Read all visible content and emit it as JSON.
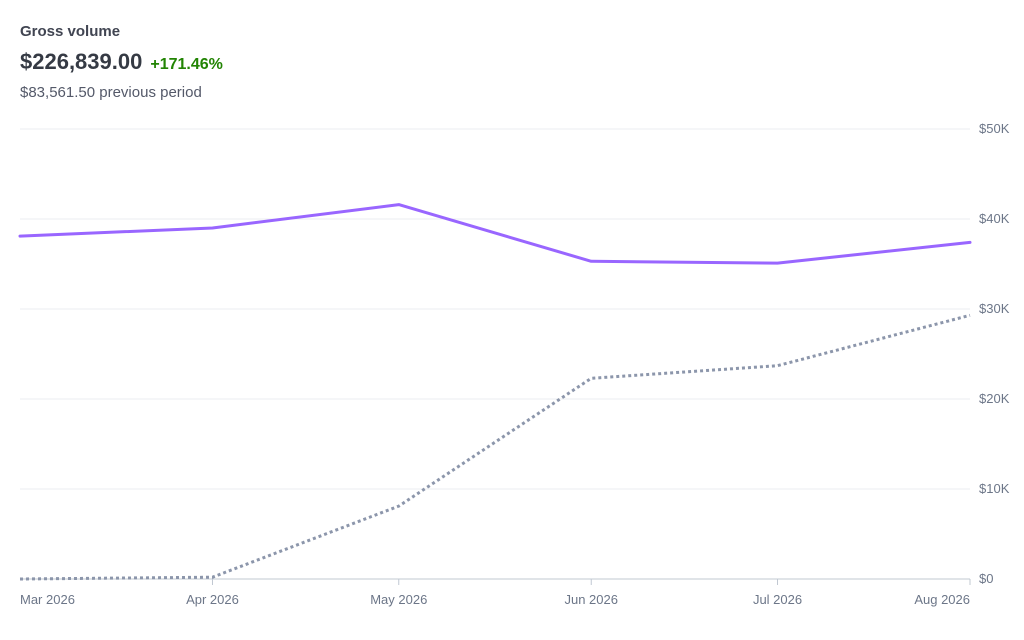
{
  "header": {
    "title": "Gross volume",
    "amount": "$226,839.00",
    "delta": "+171.46%",
    "previous_amount": "$83,561.50",
    "previous_label": "previous period"
  },
  "colors": {
    "current": "#9966ff",
    "previous": "#8c96ab",
    "delta": "#228403",
    "grid": "#ebeef1"
  },
  "chart_data": {
    "type": "line",
    "x": [
      "Mar 2026",
      "Apr 2026",
      "May 2026",
      "Jun 2026",
      "Jul 2026",
      "Aug 2026"
    ],
    "x_dates": [
      "2026-03-01",
      "2026-04-01",
      "2026-05-01",
      "2026-06-01",
      "2026-07-01",
      "2026-08-01"
    ],
    "series": [
      {
        "values": [
          38100,
          39000,
          41600,
          35300,
          35100,
          37400
        ],
        "style": "solid",
        "color": "#9966ff"
      },
      {
        "values": [
          0,
          200,
          8100,
          22300,
          23700,
          29300
        ],
        "style": "dotted",
        "color": "#8c96ab"
      }
    ],
    "y_ticks": [
      0,
      10000,
      20000,
      30000,
      40000,
      50000
    ],
    "y_tick_labels": [
      "$0",
      "$10K",
      "$20K",
      "$30K",
      "$40K",
      "$50K"
    ],
    "ylim": [
      0,
      50000
    ],
    "grid": true,
    "y_axis_position": "right"
  }
}
